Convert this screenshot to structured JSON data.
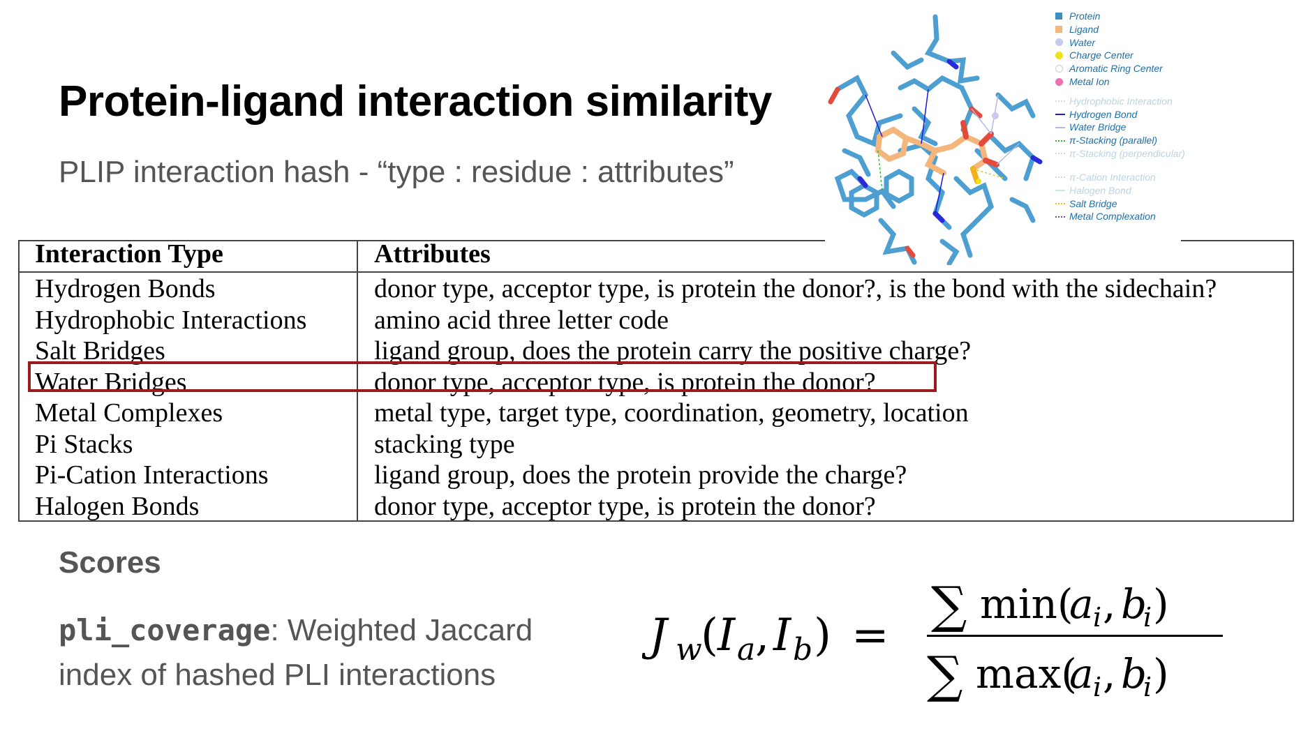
{
  "slide": {
    "title": "Protein-ligand interaction similarity",
    "subtitle": "PLIP interaction hash - “type : residue : attributes”"
  },
  "legend": {
    "items": [
      {
        "label": "Protein",
        "symbol": "square",
        "color": "#3a8fc4"
      },
      {
        "label": "Ligand",
        "symbol": "square",
        "color": "#f4b67d"
      },
      {
        "label": "Water",
        "symbol": "dot",
        "color": "#c7c9ee"
      },
      {
        "label": "Charge Center",
        "symbol": "dot",
        "color": "#f0e21a"
      },
      {
        "label": "Aromatic Ring Center",
        "symbol": "ring",
        "color": "#cccccc"
      },
      {
        "label": "Metal Ion",
        "symbol": "dot",
        "color": "#ef6fb0"
      },
      {
        "label": "Hydrophobic Interaction",
        "symbol": "dotted",
        "color": "#c9d9e6",
        "faded": true
      },
      {
        "label": "Hydrogen Bond",
        "symbol": "solid",
        "color": "#1a1adb"
      },
      {
        "label": "Water Bridge",
        "symbol": "solid",
        "color": "#b3b8e6"
      },
      {
        "label": "π-Stacking (parallel)",
        "symbol": "dotted",
        "color": "#2dbf2d"
      },
      {
        "label": "π-Stacking (perpendicular)",
        "symbol": "dotted",
        "color": "#c9d9e6",
        "faded": true
      },
      {
        "label": "π-Cation Interaction",
        "symbol": "dotted",
        "color": "#c9d9e6",
        "faded": true
      },
      {
        "label": "Halogen Bond",
        "symbol": "solid",
        "color": "#c9ecd6",
        "faded": true
      },
      {
        "label": "Salt Bridge",
        "symbol": "dotted",
        "color": "#e8c51a"
      },
      {
        "label": "Metal Complexation",
        "symbol": "dotted",
        "color": "#8a3ea8"
      }
    ]
  },
  "table": {
    "headers": [
      "Interaction Type",
      "Attributes"
    ],
    "rows": [
      [
        "Hydrogen Bonds",
        "donor type, acceptor type, is protein the donor?, is the bond with the sidechain?"
      ],
      [
        "Hydrophobic Interactions",
        "amino acid three letter code"
      ],
      [
        "Salt Bridges",
        "ligand group, does the protein carry the positive charge?"
      ],
      [
        "Water Bridges",
        "donor type, acceptor type, is protein the donor?"
      ],
      [
        "Metal Complexes",
        "metal type, target type, coordination, geometry, location"
      ],
      [
        "Pi Stacks",
        "stacking type"
      ],
      [
        "Pi-Cation Interactions",
        "ligand group, does the protein provide the charge?"
      ],
      [
        "Halogen Bonds",
        "donor type, acceptor type, is protein the donor?"
      ]
    ],
    "highlighted_row": "Water Bridges",
    "highlight_color": "#9b1c1c"
  },
  "scores": {
    "heading": "Scores",
    "metric": "pli_coverage",
    "description": ": Weighted Jaccard index of hashed PLI interactions"
  },
  "formula": {
    "lhs": "J_w(I_a, I_b) =",
    "numerator": "∑ min(a_i, b_i)",
    "denominator": "∑ max(a_i, b_i)"
  },
  "colors": {
    "title": "#000000",
    "subtitle": "#555555",
    "protein": "#3a8fc4",
    "ligand": "#f4b67d",
    "legend_text": "#1f6fa8"
  }
}
